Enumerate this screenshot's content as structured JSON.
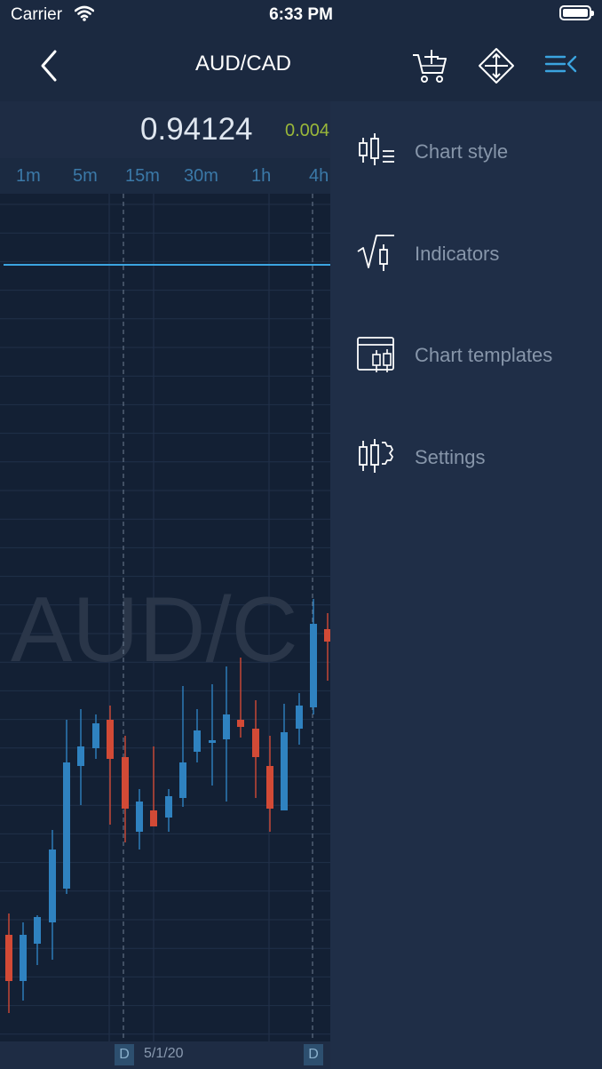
{
  "status_bar": {
    "carrier": "Carrier",
    "time": "6:33 PM"
  },
  "nav": {
    "title": "AUD/CAD"
  },
  "quote": {
    "price": "0.94124",
    "change": "0.004"
  },
  "timeframes": [
    "1m",
    "5m",
    "15m",
    "30m",
    "1h",
    "4h"
  ],
  "chart": {
    "watermark": "AUD/C",
    "date_label": "5/1/20",
    "day_marker": "D"
  },
  "menu": {
    "items": [
      {
        "label": "Chart style",
        "icon": "chart-style-icon"
      },
      {
        "label": "Indicators",
        "icon": "indicators-icon"
      },
      {
        "label": "Chart templates",
        "icon": "chart-templates-icon"
      },
      {
        "label": "Settings",
        "icon": "settings-icon"
      }
    ]
  },
  "colors": {
    "accent": "#3ba4e0",
    "bull_candle": "#2f82c0",
    "bear_candle": "#d24a36",
    "change_positive": "#9ab83a",
    "background": "#1b2940"
  }
}
